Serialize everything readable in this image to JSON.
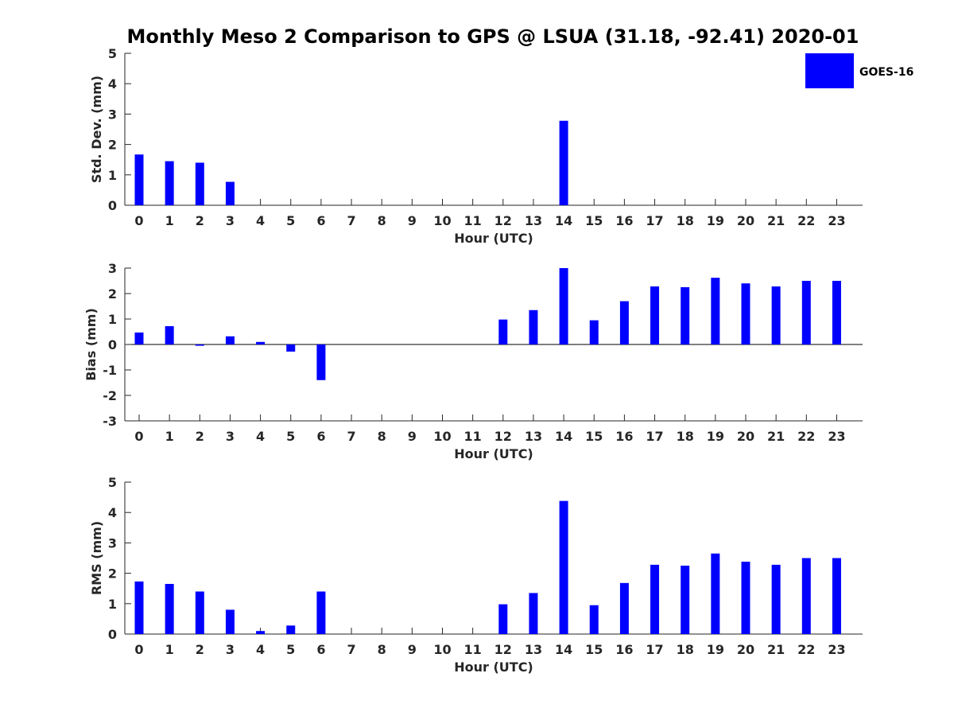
{
  "chart_data": {
    "title": "Monthly Meso 2 Comparison to GPS @ LSUA (31.18, -92.41) 2020-01",
    "legend": {
      "entries": [
        "GOES-16"
      ],
      "placement": "top-right",
      "color": "#0000ff"
    },
    "bar_color": "#0000ff",
    "panels": [
      {
        "type": "bar",
        "xlabel": "Hour (UTC)",
        "ylabel": "Std. Dev. (mm)",
        "ylim": [
          0,
          5
        ],
        "yticks": [
          0,
          1,
          2,
          3,
          4,
          5
        ],
        "categories": [
          "0",
          "1",
          "2",
          "3",
          "4",
          "5",
          "6",
          "7",
          "8",
          "9",
          "10",
          "11",
          "12",
          "13",
          "14",
          "15",
          "16",
          "17",
          "18",
          "19",
          "20",
          "21",
          "22",
          "23"
        ],
        "series": [
          {
            "name": "GOES-16",
            "values": [
              1.67,
              1.45,
              1.4,
              0.77,
              null,
              null,
              null,
              null,
              null,
              null,
              null,
              null,
              null,
              null,
              2.78,
              null,
              null,
              null,
              null,
              null,
              null,
              null,
              null,
              null
            ]
          }
        ]
      },
      {
        "type": "bar",
        "xlabel": "Hour (UTC)",
        "ylabel": "Bias (mm)",
        "ylim": [
          -3,
          3
        ],
        "yticks": [
          -3,
          -2,
          -1,
          0,
          1,
          2,
          3
        ],
        "categories": [
          "0",
          "1",
          "2",
          "3",
          "4",
          "5",
          "6",
          "7",
          "8",
          "9",
          "10",
          "11",
          "12",
          "13",
          "14",
          "15",
          "16",
          "17",
          "18",
          "19",
          "20",
          "21",
          "22",
          "23"
        ],
        "series": [
          {
            "name": "GOES-16",
            "values": [
              0.47,
              0.72,
              -0.05,
              0.32,
              0.1,
              -0.28,
              -1.4,
              null,
              null,
              null,
              null,
              null,
              0.98,
              1.35,
              3.0,
              0.95,
              1.7,
              2.28,
              2.25,
              2.62,
              2.4,
              2.28,
              2.5,
              2.5
            ]
          }
        ]
      },
      {
        "type": "bar",
        "xlabel": "Hour (UTC)",
        "ylabel": "RMS (mm)",
        "ylim": [
          0,
          5
        ],
        "yticks": [
          0,
          1,
          2,
          3,
          4,
          5
        ],
        "categories": [
          "0",
          "1",
          "2",
          "3",
          "4",
          "5",
          "6",
          "7",
          "8",
          "9",
          "10",
          "11",
          "12",
          "13",
          "14",
          "15",
          "16",
          "17",
          "18",
          "19",
          "20",
          "21",
          "22",
          "23"
        ],
        "series": [
          {
            "name": "GOES-16",
            "values": [
              1.73,
              1.65,
              1.4,
              0.8,
              0.1,
              0.28,
              1.4,
              null,
              null,
              null,
              null,
              null,
              0.98,
              1.35,
              4.38,
              0.95,
              1.68,
              2.28,
              2.25,
              2.65,
              2.38,
              2.28,
              2.5,
              2.5
            ]
          }
        ]
      }
    ]
  }
}
